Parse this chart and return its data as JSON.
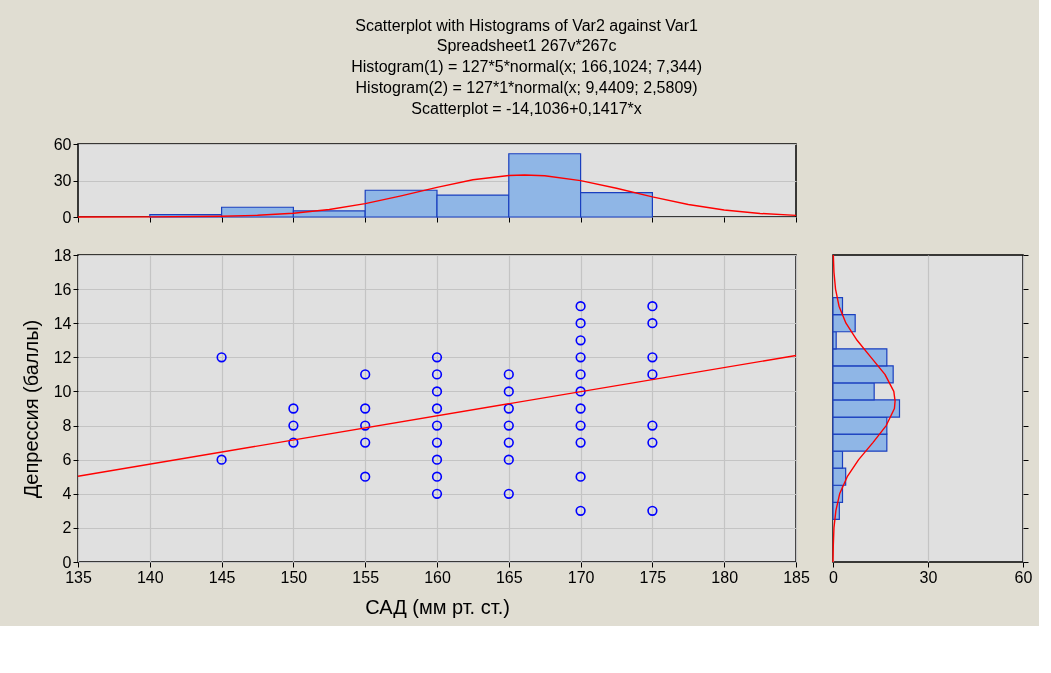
{
  "chart_data": [
    {
      "type": "histogram",
      "title": "Scatterplot with Histograms of Var2 against Var1",
      "subtitle": "Spreadsheet1 267v*267c",
      "annotations": [
        "Histogram(1) = 127*5*normal(x; 166,1024; 7,344)",
        "Histogram(2) = 127*1*normal(x; 9,4409; 2,5809)",
        "Scatterplot = -14,1036+0,1417*x"
      ],
      "bins": [
        140,
        145,
        150,
        155,
        160,
        165,
        170,
        175
      ],
      "series": [
        {
          "color": "#8fb6e6",
          "values": [
            2,
            8,
            5,
            22,
            18,
            52,
            20
          ]
        },
        {
          "type": "line",
          "color": "#ff0000",
          "x": [
            135,
            140,
            145,
            147.5,
            150,
            152.5,
            155,
            157.5,
            160,
            162.5,
            165,
            166.1,
            167.5,
            170,
            172.5,
            175,
            177.5,
            180,
            182.5,
            185
          ],
          "values": [
            0,
            0.1,
            0.6,
            1.4,
            3.1,
            6.2,
            11,
            17.4,
            24.4,
            30.6,
            34.1,
            34.5,
            33.9,
            29.9,
            23.6,
            16.5,
            10.3,
            5.8,
            2.9,
            1.3
          ]
        }
      ],
      "xlim": [
        135,
        185
      ],
      "xticks": [
        135,
        140,
        145,
        150,
        155,
        160,
        165,
        170,
        175,
        180,
        185
      ],
      "ylim": [
        0,
        60
      ],
      "yticks": [
        0,
        30,
        60
      ],
      "grid": "y",
      "tick_labels": "y"
    },
    {
      "type": "scatter",
      "xlabel": "САД (мм рт. ст.)",
      "ylabel": "Депрессия (баллы)",
      "series": [
        {
          "color": "#0000ff",
          "marker": "circle",
          "x": [
            145,
            145,
            150,
            150,
            150,
            155,
            155,
            155,
            155,
            155,
            160,
            160,
            160,
            160,
            160,
            160,
            160,
            160,
            160,
            165,
            165,
            165,
            165,
            165,
            165,
            165,
            170,
            170,
            170,
            170,
            170,
            170,
            170,
            170,
            170,
            170,
            170,
            175,
            175,
            175,
            175,
            175,
            175,
            175
          ],
          "values": [
            12,
            6,
            9,
            8,
            7,
            11,
            9,
            8,
            7,
            5,
            12,
            11,
            10,
            9,
            8,
            7,
            6,
            5,
            4,
            11,
            10,
            9,
            8,
            7,
            6,
            4,
            15,
            14,
            13,
            12,
            11,
            10,
            9,
            8,
            7,
            5,
            3,
            15,
            14,
            12,
            11,
            8,
            7,
            3
          ]
        },
        {
          "type": "line",
          "color": "#ff0000",
          "x": [
            135,
            185
          ],
          "values": [
            5.03,
            12.11
          ]
        }
      ],
      "xlim": [
        135,
        185
      ],
      "xticks": [
        135,
        140,
        145,
        150,
        155,
        160,
        165,
        170,
        175,
        180,
        185
      ],
      "ylim": [
        0,
        18
      ],
      "yticks": [
        0,
        2,
        4,
        6,
        8,
        10,
        12,
        14,
        16,
        18
      ],
      "grid": true
    },
    {
      "type": "histogram",
      "orientation": "horizontal",
      "bins": [
        2.5,
        3.5,
        4.5,
        5.5,
        6.5,
        7.5,
        8.5,
        9.5,
        10.5,
        11.5,
        12.5,
        13.5,
        14.5,
        15.5
      ],
      "series": [
        {
          "color": "#8fb6e6",
          "values": [
            2,
            3,
            4,
            3,
            17,
            17,
            21,
            13,
            19,
            17,
            1,
            7,
            3
          ]
        },
        {
          "type": "line",
          "color": "#ff0000",
          "x": [
            0,
            1,
            2,
            3,
            4,
            5,
            6,
            7,
            8,
            9,
            9.44,
            10,
            11,
            12,
            13,
            14,
            15,
            16,
            17,
            18
          ],
          "values": [
            0,
            0.1,
            0.3,
            0.9,
            2.1,
            4.5,
            8.1,
            12.6,
            16.8,
            19.4,
            19.6,
            19.2,
            16.4,
            12,
            7.6,
            4.1,
            1.9,
            0.8,
            0.3,
            0.1
          ]
        }
      ],
      "xlim": [
        0,
        60
      ],
      "xticks": [
        0,
        30,
        60
      ],
      "ylim": [
        0,
        18
      ],
      "yticks": [
        0,
        2,
        4,
        6,
        8,
        10,
        12,
        14,
        16,
        18
      ],
      "grid": "x",
      "tick_labels": "x"
    }
  ]
}
